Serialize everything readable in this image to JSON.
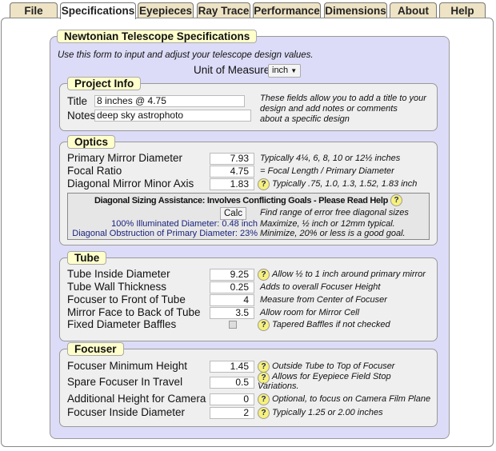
{
  "tabs": [
    "File",
    "Specifications",
    "Eyepieces",
    "Ray Trace",
    "Performance",
    "Dimensions",
    "About",
    "Help"
  ],
  "active_tab": "Specifications",
  "title": "Newtonian Telescope Specifications",
  "intro": "Use this form to input and adjust your telescope design values.",
  "unit": {
    "label": "Unit of Measure",
    "value": "inch"
  },
  "project": {
    "legend": "Project Info",
    "title_label": "Title",
    "title_value": "8 inches @ 4.75",
    "notes_label": "Notes",
    "notes_value": "deep sky astrophoto",
    "note": [
      "These fields allow you to add a title to your",
      "design and add notes or comments",
      "about a specific design"
    ]
  },
  "optics": {
    "legend": "Optics",
    "rows": [
      {
        "label": "Primary Mirror Diameter",
        "value": "7.93",
        "help": false,
        "note": "Typically 4¼, 6, 8, 10 or 12½ inches"
      },
      {
        "label": "Focal Ratio",
        "value": "4.75",
        "help": false,
        "note": "= Focal Length / Primary Diameter"
      },
      {
        "label": "Diagonal Mirror Minor Axis",
        "value": "1.83",
        "help": true,
        "note": "Typically .75, 1.0, 1.3, 1.52, 1.83 inch"
      }
    ]
  },
  "diagonal": {
    "heading": "Diagonal Sizing Assistance: Involves Conflicting Goals - Please Read Help",
    "calc": "Calc",
    "calc_note": "Find range of error free diagonal sizes",
    "illum": "100% Illuminated Diameter: 0.48 inch",
    "illum_note": "Maximize, ½ inch or 12mm typical.",
    "obstr": "Diagonal Obstruction of Primary Diameter: 23%",
    "obstr_note": "Minimize, 20% or less is a good goal."
  },
  "tube": {
    "legend": "Tube",
    "rows": [
      {
        "label": "Tube Inside Diameter",
        "value": "9.25",
        "help": true,
        "note": "Allow ½ to 1 inch around primary mirror"
      },
      {
        "label": "Tube Wall Thickness",
        "value": "0.25",
        "help": false,
        "note": "Adds to overall Focuser Height"
      },
      {
        "label": "Focuser to Front of Tube",
        "value": "4",
        "help": false,
        "note": "Measure from Center of Focuser"
      },
      {
        "label": "Mirror Face to Back of Tube",
        "value": "3.5",
        "help": false,
        "note": "Allow room for Mirror Cell"
      },
      {
        "label": "Fixed Diameter Baffles",
        "checkbox": false,
        "help": true,
        "note": "Tapered Baffles if not checked"
      }
    ]
  },
  "focuser": {
    "legend": "Focuser",
    "rows": [
      {
        "label": "Focuser Minimum Height",
        "value": "1.45",
        "help": true,
        "note": "Outside Tube to Top of Focuser"
      },
      {
        "label": "Spare Focuser In Travel",
        "value": "0.5",
        "help": true,
        "note": "Allows for Eyepiece Field Stop",
        "note2": "Variations."
      },
      {
        "label": "Additional Height for Camera",
        "value": "0",
        "help": true,
        "note": "Optional, to focus on Camera Film Plane"
      },
      {
        "label": "Focuser Inside Diameter",
        "value": "2",
        "help": true,
        "note": "Typically 1.25 or 2.00 inches"
      }
    ]
  },
  "colors": {
    "panel": "#dcdcf8",
    "legend": "#ffffcc",
    "tab": "#eee3c4",
    "help": "#f6f17a"
  }
}
